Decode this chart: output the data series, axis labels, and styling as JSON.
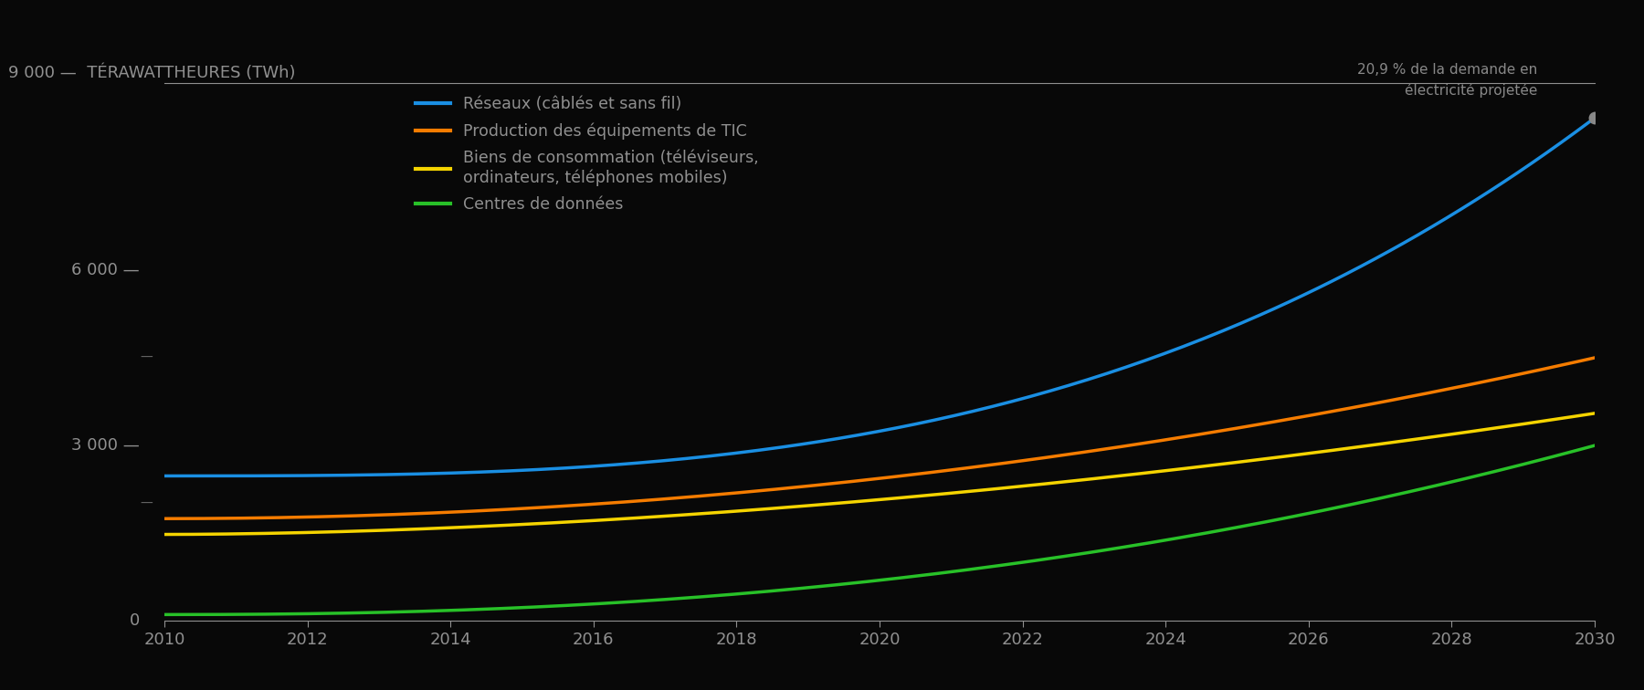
{
  "background_color": "#080808",
  "text_color": "#909090",
  "header_text": "9 000 —  TÉRAWATTHEURES (TWh)",
  "lines": [
    {
      "label": "Réseaux (câblés et sans fil)",
      "color": "#1a8fe3",
      "y_2010": 2480,
      "y_2030": 8600,
      "exponent": 3.0
    },
    {
      "label": "Production des équipements de TIC",
      "color": "#f57c00",
      "y_2010": 1750,
      "y_2030": 4500,
      "exponent": 2.0
    },
    {
      "label": "Biens de consommation (téléviseurs,\nordinateurs, téléphones mobiles)",
      "color": "#f5d400",
      "y_2010": 1480,
      "y_2030": 3550,
      "exponent": 1.8
    },
    {
      "label": "Centres de données",
      "color": "#28c128",
      "y_2010": 110,
      "y_2030": 3000,
      "exponent": 2.3
    }
  ],
  "annotation_text": "20,9 % de la demande en\nélectricité projetée",
  "annotation_color": "#888888",
  "dot_color": "#888888",
  "ylim": [
    0,
    9200
  ],
  "ytick_values": [
    0,
    3000,
    6000
  ],
  "ytick_labels": [
    "0",
    "3 000",
    "6 000"
  ],
  "extra_ytick_labels": [
    {
      "value": 9000,
      "label": "9 000"
    },
    {
      "value": 4500,
      "label": "—"
    },
    {
      "value": 2000,
      "label": "—"
    }
  ],
  "xlim": [
    2010,
    2030
  ],
  "xticks": [
    2010,
    2012,
    2014,
    2016,
    2018,
    2020,
    2022,
    2024,
    2026,
    2028,
    2030
  ],
  "line_width": 2.5,
  "figsize": [
    18.0,
    7.56
  ],
  "dpi": 100
}
